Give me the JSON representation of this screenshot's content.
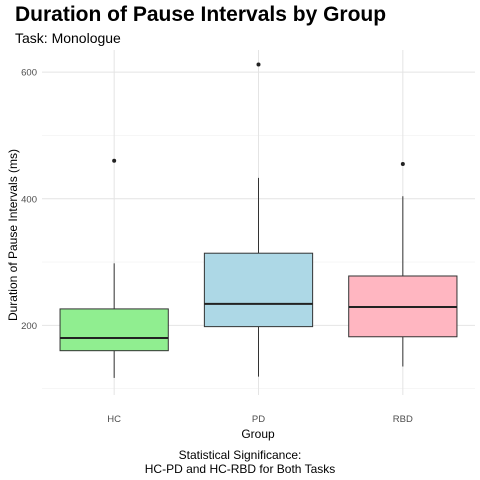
{
  "chart_data": {
    "type": "boxplot",
    "title": "Duration of Pause Intervals by Group",
    "subtitle": "Task: Monologue",
    "xlabel": "Group",
    "ylabel": "Duration of Pause Intervals (ms)",
    "caption_lines": [
      "Statistical Significance:",
      "HC-PD and HC-RBD for Both Tasks"
    ],
    "ylim": [
      90,
      635
    ],
    "yticks": [
      200,
      400,
      600
    ],
    "grid": true,
    "legend": "none",
    "categories": [
      "HC",
      "PD",
      "RBD"
    ],
    "boxes": [
      {
        "group": "HC",
        "whisker_low": 117,
        "q1": 160,
        "median": 180,
        "q3": 226,
        "whisker_high": 298,
        "outliers": [
          460
        ],
        "fill": "#90EE90"
      },
      {
        "group": "PD",
        "whisker_low": 119,
        "q1": 198,
        "median": 234,
        "q3": 314,
        "whisker_high": 433,
        "outliers": [
          612
        ],
        "fill": "#ADD8E6"
      },
      {
        "group": "RBD",
        "whisker_low": 135,
        "q1": 182,
        "median": 229,
        "q3": 278,
        "whisker_high": 404,
        "outliers": [
          455
        ],
        "fill": "#FFB6C1"
      }
    ]
  }
}
